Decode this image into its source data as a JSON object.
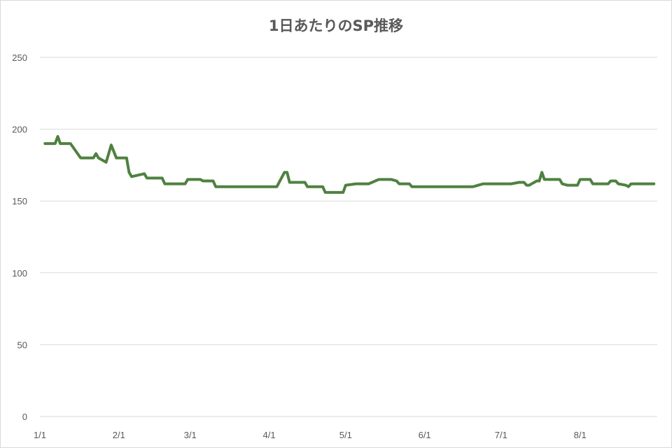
{
  "chart_data": {
    "type": "line",
    "title": "1日あたりのSP推移",
    "xlabel": "",
    "ylabel": "",
    "ylim": [
      0,
      250
    ],
    "yticks": [
      "0",
      "50",
      "100",
      "150",
      "200",
      "250"
    ],
    "xticks": [
      "1/1",
      "2/1",
      "3/1",
      "4/1",
      "5/1",
      "6/1",
      "7/1",
      "8/1"
    ],
    "grid": true,
    "legend": "none",
    "color": "#4f8140",
    "series": [
      {
        "x": [
          "1/3",
          "1/7",
          "1/8",
          "1/9",
          "1/13",
          "1/17",
          "1/22",
          "1/23",
          "1/24",
          "1/27",
          "1/29",
          "1/31",
          "2/4",
          "2/5",
          "2/6",
          "2/11",
          "2/12",
          "2/18",
          "2/19",
          "2/27",
          "2/28",
          "3/5",
          "3/6",
          "3/10",
          "3/11",
          "4/4",
          "4/7",
          "4/8",
          "4/9",
          "4/15",
          "4/16",
          "4/22",
          "4/23",
          "4/30",
          "5/1",
          "5/5",
          "5/10",
          "5/14",
          "5/19",
          "5/21",
          "5/22",
          "5/26",
          "5/27",
          "6/20",
          "6/24",
          "7/5",
          "7/8",
          "7/10",
          "7/11",
          "7/12",
          "7/15",
          "7/16",
          "7/17",
          "7/18",
          "7/24",
          "7/25",
          "7/27",
          "7/31",
          "8/1",
          "8/5",
          "8/6",
          "8/12",
          "8/13",
          "8/15",
          "8/16",
          "8/19",
          "8/20",
          "8/21",
          "8/30"
        ],
        "values": [
          190,
          190,
          195,
          190,
          190,
          180,
          180,
          183,
          180,
          177,
          189,
          180,
          180,
          170,
          167,
          169,
          166,
          166,
          162,
          162,
          165,
          165,
          164,
          164,
          160,
          160,
          170,
          170,
          163,
          163,
          160,
          160,
          156,
          156,
          161,
          162,
          162,
          165,
          165,
          164,
          162,
          162,
          160,
          160,
          162,
          162,
          163,
          163,
          161,
          161,
          164,
          164,
          170,
          165,
          165,
          162,
          161,
          161,
          165,
          165,
          162,
          162,
          164,
          164,
          162,
          161,
          160,
          162,
          162
        ]
      }
    ]
  }
}
